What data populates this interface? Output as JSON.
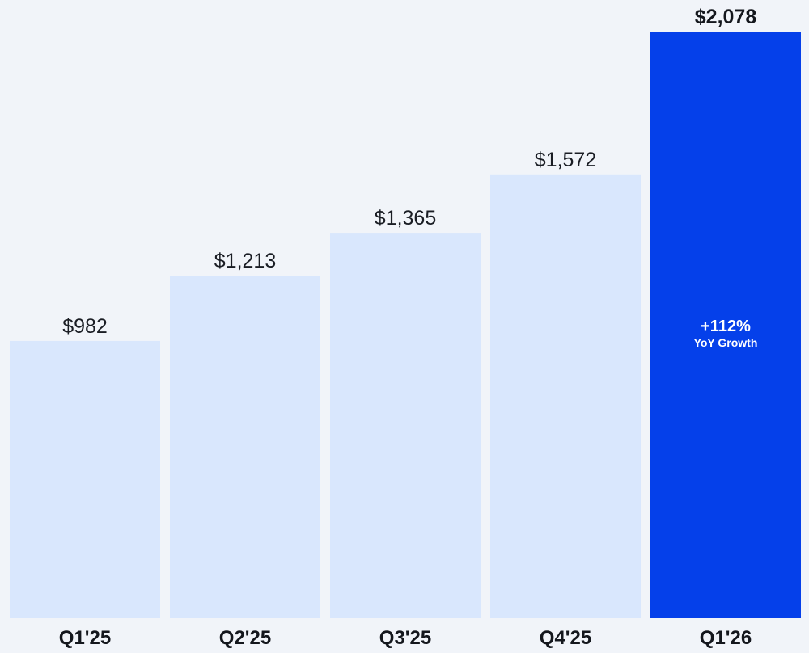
{
  "colors": {
    "background": "#f1f4f9",
    "bar": "#d9e7fd",
    "highlight_bar": "#0540ea",
    "text": "#14171d",
    "annotation_text": "#ffffff"
  },
  "chart_data": {
    "type": "bar",
    "categories": [
      "Q1'25",
      "Q2'25",
      "Q3'25",
      "Q4'25",
      "Q1'26"
    ],
    "values": [
      982,
      1213,
      1365,
      1572,
      2078
    ],
    "value_labels": [
      "$982",
      "$1,213",
      "$1,365",
      "$1,572",
      "$2,078"
    ],
    "highlight_index": 4,
    "title": "",
    "xlabel": "",
    "ylabel": "",
    "ylim": [
      0,
      2078
    ],
    "grid": false,
    "legend": "none",
    "annotation": {
      "bar_index": 4,
      "main": "+112%",
      "sub": "YoY Growth"
    }
  }
}
